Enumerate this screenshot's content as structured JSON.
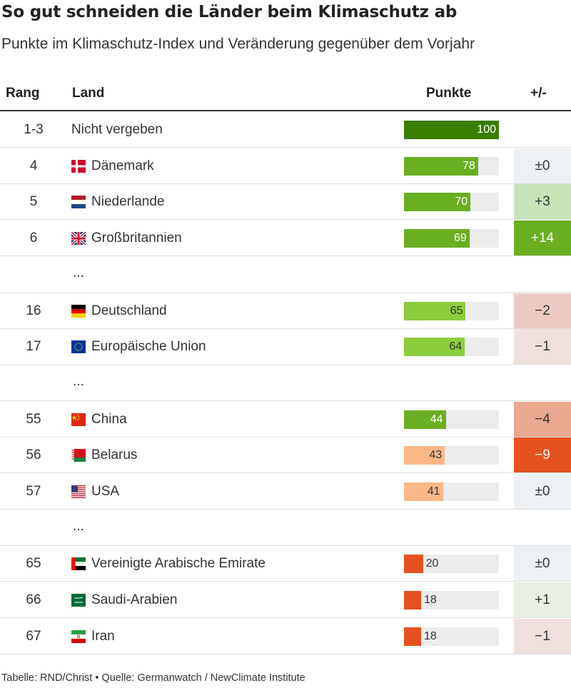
{
  "title": "So gut schneiden die Länder beim Klimaschutz ab",
  "subtitle": "Punkte im Klimaschutz-Index und Veränderung gegenüber dem Vorjahr",
  "columns": {
    "rank": "Rang",
    "country": "Land",
    "points": "Punkte",
    "change": "+/-"
  },
  "ellipsis": "...",
  "footer": "Tabelle: RND/Christ • Quelle: Germanwatch / NewClimate Institute",
  "colors": {
    "bar_dark_green": "#3a7d00",
    "bar_green": "#6aae22",
    "bar_light_green": "#8ccd3e",
    "bar_light_orange": "#fbb887",
    "bar_orange": "#e6521f",
    "bar_track": "#ececec",
    "change_neutral": "#edf1f3",
    "change_plus_1": "#e6efe2",
    "change_plus_3": "#c8e3b8",
    "change_plus_14": "#6aae22",
    "change_minus_1": "#efe0dd",
    "change_minus_2": "#ebcbc3",
    "change_minus_4": "#e9a88f",
    "change_minus_9": "#e6521f"
  },
  "chart_data": {
    "type": "table",
    "title": "So gut schneiden die Länder beim Klimaschutz ab",
    "subtitle": "Punkte im Klimaschutz-Index und Veränderung gegenüber dem Vorjahr",
    "max": 100,
    "rows": [
      {
        "kind": "data",
        "rank": "1-3",
        "country": "Nicht vergeben",
        "flag": "",
        "points": 100,
        "points_label": "100",
        "bar_color": "#3a7d00",
        "label_light": true,
        "change": "",
        "change_bg": ""
      },
      {
        "kind": "data",
        "rank": "4",
        "country": "Dänemark",
        "flag": "denmark-flag-icon",
        "points": 78,
        "points_label": "78",
        "bar_color": "#6aae22",
        "label_light": true,
        "change": "±0",
        "change_bg": "#edf1f3"
      },
      {
        "kind": "data",
        "rank": "5",
        "country": "Niederlande",
        "flag": "netherlands-flag-icon",
        "points": 70,
        "points_label": "70",
        "bar_color": "#6aae22",
        "label_light": true,
        "change": "+3",
        "change_bg": "#c8e3b8"
      },
      {
        "kind": "data",
        "rank": "6",
        "country": "Großbritannien",
        "flag": "uk-flag-icon",
        "points": 69,
        "points_label": "69",
        "bar_color": "#6aae22",
        "label_light": true,
        "change": "+14",
        "change_bg": "#6aae22",
        "change_light": true
      },
      {
        "kind": "ellipsis"
      },
      {
        "kind": "data",
        "rank": "16",
        "country": "Deutschland",
        "flag": "germany-flag-icon",
        "points": 65,
        "points_label": "65",
        "bar_color": "#8ccd3e",
        "label_light": false,
        "change": "−2",
        "change_bg": "#ebcbc3"
      },
      {
        "kind": "data",
        "rank": "17",
        "country": "Europäische Union",
        "flag": "eu-flag-icon",
        "points": 64,
        "points_label": "64",
        "bar_color": "#8ccd3e",
        "label_light": false,
        "change": "−1",
        "change_bg": "#efe0dd"
      },
      {
        "kind": "ellipsis"
      },
      {
        "kind": "data",
        "rank": "55",
        "country": "China",
        "flag": "china-flag-icon",
        "points": 44,
        "points_label": "44",
        "bar_color": "#6aae22",
        "label_light": true,
        "change": "−4",
        "change_bg": "#e9a88f"
      },
      {
        "kind": "data",
        "rank": "56",
        "country": "Belarus",
        "flag": "belarus-flag-icon",
        "points": 43,
        "points_label": "43",
        "bar_color": "#fbb887",
        "label_light": false,
        "change": "−9",
        "change_bg": "#e6521f",
        "change_light": true
      },
      {
        "kind": "data",
        "rank": "57",
        "country": "USA",
        "flag": "usa-flag-icon",
        "points": 41,
        "points_label": "41",
        "bar_color": "#fbb887",
        "label_light": false,
        "change": "±0",
        "change_bg": "#edf1f3"
      },
      {
        "kind": "ellipsis"
      },
      {
        "kind": "data",
        "rank": "65",
        "country": "Vereinigte Arabische Emirate",
        "flag": "uae-flag-icon",
        "points": 20,
        "points_label": "20",
        "bar_color": "#e6521f",
        "label_light": false,
        "change": "±0",
        "change_bg": "#edf1f3"
      },
      {
        "kind": "data",
        "rank": "66",
        "country": "Saudi-Arabien",
        "flag": "saudi-arabia-flag-icon",
        "points": 18,
        "points_label": "18",
        "bar_color": "#e6521f",
        "label_light": false,
        "change": "+1",
        "change_bg": "#e6efe2"
      },
      {
        "kind": "data",
        "rank": "67",
        "country": "Iran",
        "flag": "iran-flag-icon",
        "points": 18,
        "points_label": "18",
        "bar_color": "#e6521f",
        "label_light": false,
        "change": "−1",
        "change_bg": "#efe0dd"
      }
    ]
  }
}
